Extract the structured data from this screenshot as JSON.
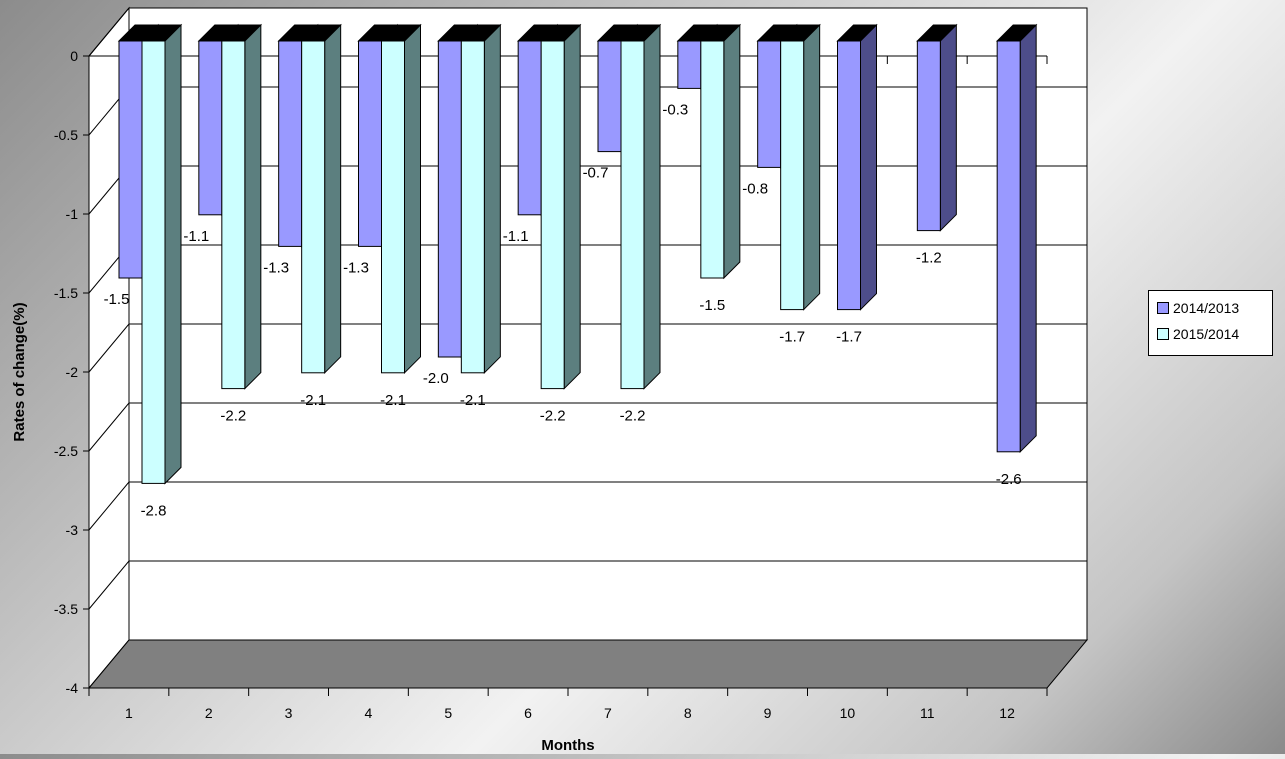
{
  "chart_data": {
    "type": "bar",
    "title": "",
    "xlabel": "Months",
    "ylabel": "Rates of change(%)",
    "categories": [
      "1",
      "2",
      "3",
      "4",
      "5",
      "6",
      "7",
      "8",
      "9",
      "10",
      "11",
      "12"
    ],
    "series": [
      {
        "name": "2014/2013",
        "values": [
          -1.5,
          -1.1,
          -1.3,
          -1.3,
          -2.0,
          -1.1,
          -0.7,
          -0.3,
          -0.8,
          -1.7,
          -1.2,
          -2.6
        ],
        "color": "#9999ff",
        "side_color": "#4d4d8a"
      },
      {
        "name": "2015/2014",
        "values": [
          -2.8,
          -2.2,
          -2.1,
          -2.1,
          -2.1,
          -2.2,
          -2.2,
          -1.5,
          -1.7,
          null,
          null,
          null
        ],
        "color": "#ccffff",
        "side_color": "#5c7f7f"
      }
    ],
    "data_labels": [
      [
        "-1.5",
        "-1.1",
        "-1.3",
        "-1.3",
        "-2.0",
        "-1.1",
        "-0.7",
        "-0.3",
        "-0.8",
        "-1.7",
        "-1.2",
        "-2.6"
      ],
      [
        "-2.8",
        "-2.2",
        "-2.1",
        "-2.1",
        "-2.1",
        "-2.2",
        "-2.2",
        "-1.5",
        "-1.7",
        "",
        "",
        ""
      ]
    ],
    "y_ticks": [
      "0",
      "-0.5",
      "-1",
      "-1.5",
      "-2",
      "-2.5",
      "-3",
      "-3.5",
      "-4"
    ],
    "ylim": [
      -4,
      0
    ],
    "grid": true,
    "legend_position": "right",
    "floor_color": "#808080",
    "bar_top_color": "#000000"
  }
}
